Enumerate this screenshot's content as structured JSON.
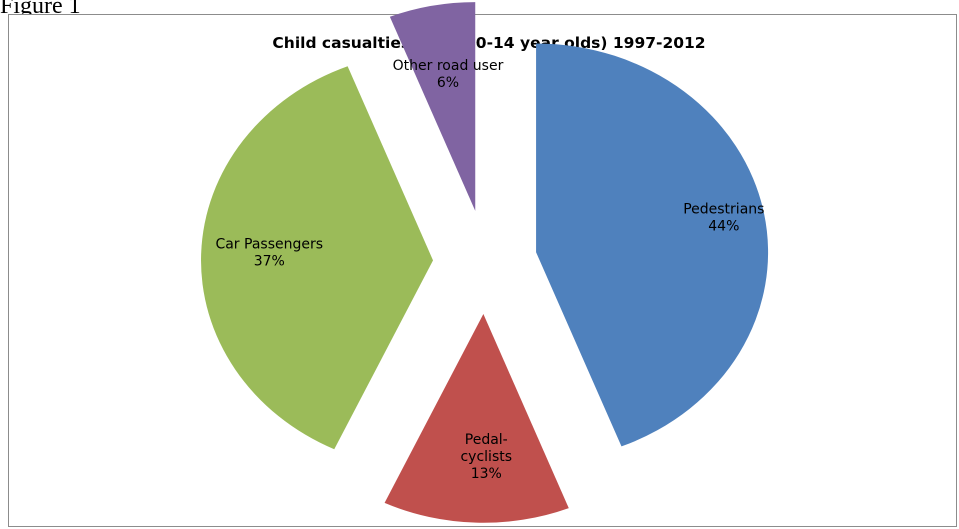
{
  "figure_caption": "Figure 1",
  "chart_data": {
    "type": "pie",
    "title": "Child casualties killed (0-14 year olds) 1997-2012",
    "exploded": true,
    "slices": [
      {
        "name": "Pedestrians",
        "value": 44,
        "label_lines": [
          "Pedestrians",
          "44%"
        ],
        "color": "#4f81bd"
      },
      {
        "name": "Pedal-cyclists",
        "value": 13,
        "label_lines": [
          "Pedal-",
          "cyclists",
          "13%"
        ],
        "color": "#c0504d"
      },
      {
        "name": "Car Passengers",
        "value": 37,
        "label_lines": [
          "Car Passengers",
          "37%"
        ],
        "color": "#9bbb59"
      },
      {
        "name": "Other road user",
        "value": 6,
        "label_lines": [
          "Other road user",
          "6%"
        ],
        "color": "#8064a2"
      }
    ]
  }
}
